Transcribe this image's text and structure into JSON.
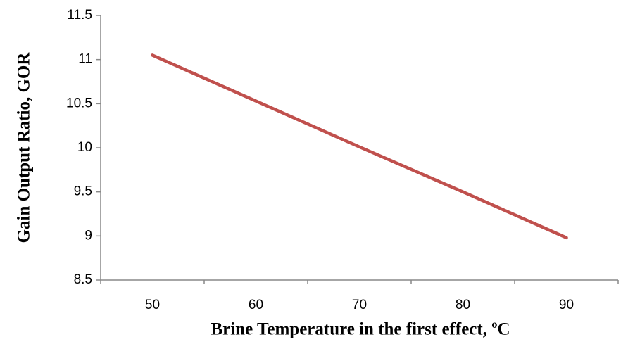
{
  "chart_data": {
    "type": "line",
    "x_label": "Brine Temperature in the first effect, ºC",
    "y_label": "Gain Output Ratio, GOR",
    "categories": [
      "50",
      "60",
      "70",
      "80",
      "90"
    ],
    "series": [
      {
        "name": "GOR",
        "color": "#c0504d",
        "values": [
          11.05,
          10.53,
          10.01,
          9.5,
          8.98
        ]
      }
    ],
    "ylim": [
      8.5,
      11.5
    ],
    "yticks": [
      8.5,
      9,
      9.5,
      10,
      10.5,
      11,
      11.5
    ],
    "grid": false
  }
}
